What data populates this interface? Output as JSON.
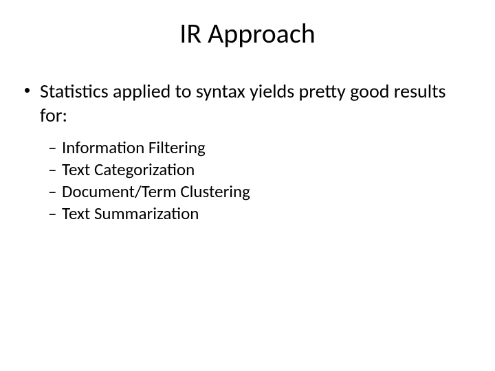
{
  "title": "IR Approach",
  "bullets": {
    "l1": {
      "text": "Statistics applied to syntax yields pretty good results for:"
    },
    "l2": [
      {
        "text": "Information Filtering"
      },
      {
        "text": "Text Categorization"
      },
      {
        "text": "Document/Term Clustering"
      },
      {
        "text": "Text Summarization"
      }
    ]
  }
}
